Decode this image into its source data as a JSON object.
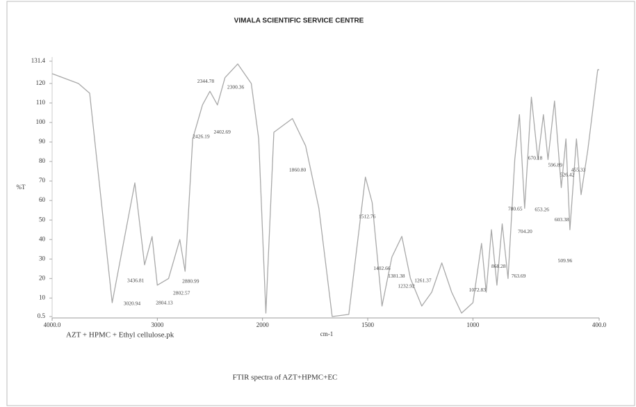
{
  "chart_data": {
    "type": "line",
    "title": "VIMALA SCIENTIFIC SERVICE CENTRE",
    "y_label": "%T",
    "x_label": "cm-1",
    "sample_name": "AZT + HPMC + Ethyl cellulose.pk",
    "caption": "FTIR spectra of AZT+HPMC+EC",
    "color": "#a8a8a8",
    "x_reversed": true,
    "x_scale_break": 2000,
    "xlim": [
      4000,
      400
    ],
    "xticks": [
      {
        "value": 4000,
        "label": "4000.0"
      },
      3000,
      2000,
      1500,
      1000,
      {
        "value": 400,
        "label": "400.0"
      }
    ],
    "ylim": [
      0.5,
      131.4
    ],
    "yticks": [
      0.5,
      10,
      20,
      30,
      40,
      50,
      60,
      70,
      80,
      90,
      100,
      110,
      120,
      131.4
    ],
    "x": [
      4000,
      3750,
      3643,
      3429,
      3214,
      3121,
      3050,
      3000,
      2893,
      2786,
      2736,
      2664,
      2571,
      2500,
      2429,
      2357,
      2236,
      2107,
      2036,
      1984,
      1946,
      1858,
      1795,
      1732,
      1669,
      1590,
      1511,
      1479,
      1432,
      1385,
      1338,
      1297,
      1243,
      1196,
      1148,
      1101,
      1054,
      1000,
      959,
      937,
      912,
      886,
      861,
      833,
      801,
      779,
      754,
      722,
      691,
      665,
      643,
      612,
      580,
      558,
      539,
      508,
      486,
      454,
      407,
      400
    ],
    "values": [
      125,
      120,
      115,
      7.6,
      69,
      27,
      41.5,
      16.6,
      20,
      40,
      23.7,
      91.6,
      109,
      116,
      109,
      123,
      130,
      120,
      91.6,
      2.3,
      95,
      102,
      88,
      56,
      0.5,
      1.6,
      72,
      59,
      5.9,
      31,
      41.6,
      20,
      5.9,
      13,
      28,
      13,
      2.3,
      7.6,
      38,
      13,
      45,
      16.6,
      48,
      20,
      81,
      104,
      56,
      113,
      81,
      104,
      81,
      111,
      66.6,
      91.6,
      45,
      91.6,
      63,
      86,
      127,
      127
    ],
    "annotations": [
      {
        "text": "2344.78",
        "x": 2621,
        "y": 121
      },
      {
        "text": "2300.36",
        "x": 2336,
        "y": 118
      },
      {
        "text": "2426.19",
        "x": 2664,
        "y": 92.6
      },
      {
        "text": "2402.69",
        "x": 2464,
        "y": 95
      },
      {
        "text": "1860.80",
        "x": 1874,
        "y": 75.5
      },
      {
        "text": "1512.76",
        "x": 1543,
        "y": 51.6
      },
      {
        "text": "3436.81",
        "x": 3286,
        "y": 18.7
      },
      {
        "text": "3020.94",
        "x": 3321,
        "y": 7
      },
      {
        "text": "2804.13",
        "x": 3014,
        "y": 7.3
      },
      {
        "text": "2802.57",
        "x": 2850,
        "y": 12.3
      },
      {
        "text": "2880.99",
        "x": 2764,
        "y": 18.4
      },
      {
        "text": "1402.66",
        "x": 1473,
        "y": 25
      },
      {
        "text": "1381.38",
        "x": 1404,
        "y": 21
      },
      {
        "text": "1232.92",
        "x": 1357,
        "y": 16
      },
      {
        "text": "1261.37",
        "x": 1278,
        "y": 18.7
      },
      {
        "text": "1072.83",
        "x": 1019,
        "y": 14
      },
      {
        "text": "868.28",
        "x": 912,
        "y": 26
      },
      {
        "text": "763.69",
        "x": 817,
        "y": 21
      },
      {
        "text": "704.20",
        "x": 786,
        "y": 44
      },
      {
        "text": "780.65",
        "x": 833,
        "y": 55.5
      },
      {
        "text": "670.18",
        "x": 738,
        "y": 81.6
      },
      {
        "text": "596.89",
        "x": 643,
        "y": 78
      },
      {
        "text": "526.42",
        "x": 586,
        "y": 73
      },
      {
        "text": "455.33",
        "x": 533,
        "y": 75.5
      },
      {
        "text": "653.26",
        "x": 706,
        "y": 55.1
      },
      {
        "text": "603.38",
        "x": 612,
        "y": 50
      },
      {
        "text": "509.96",
        "x": 596,
        "y": 29
      }
    ]
  }
}
